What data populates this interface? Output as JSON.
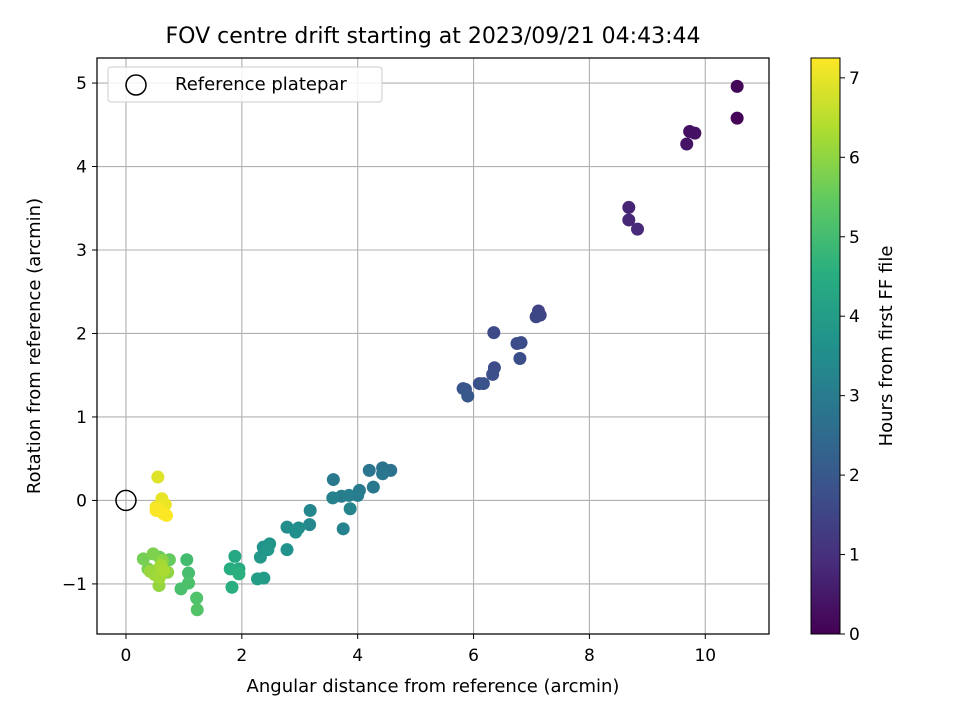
{
  "chart_data": {
    "type": "scatter",
    "title": "FOV centre drift starting at 2023/09/21 04:43:44",
    "xlabel": "Angular distance from reference (arcmin)",
    "ylabel": "Rotation from reference (arcmin)",
    "xlim": [
      -0.5,
      11.1
    ],
    "ylim": [
      -1.6,
      5.3
    ],
    "xticks": [
      0,
      2,
      4,
      6,
      8,
      10
    ],
    "yticks": [
      -1,
      0,
      1,
      2,
      3,
      4,
      5
    ],
    "xtick_labels": [
      "0",
      "2",
      "4",
      "6",
      "8",
      "10"
    ],
    "ytick_labels": [
      "−1",
      "0",
      "1",
      "2",
      "3",
      "4",
      "5"
    ],
    "grid": true,
    "legend": {
      "position": "top-left",
      "entries": [
        "Reference platepar"
      ]
    },
    "reference_point": {
      "x": 0,
      "y": 0,
      "label": "Reference platepar"
    },
    "colorbar": {
      "label": "Hours from first FF file",
      "colormap": "viridis",
      "range": [
        0,
        7.25
      ],
      "ticks": [
        0,
        1,
        2,
        3,
        4,
        5,
        6,
        7
      ],
      "tick_labels": [
        "0",
        "1",
        "2",
        "3",
        "4",
        "5",
        "6",
        "7"
      ]
    },
    "series": [
      {
        "x": [
          10.55,
          10.55,
          9.73,
          9.82,
          9.68,
          8.68,
          8.68,
          8.83,
          7.12,
          7.15,
          7.08,
          6.82,
          6.75,
          6.8,
          6.35,
          6.36,
          6.33,
          6.1,
          6.17,
          5.82,
          5.86,
          5.9,
          4.2,
          4.43,
          4.57,
          4.43,
          4.27,
          4.03,
          4.0,
          3.58,
          3.72,
          3.85,
          3.57,
          3.75,
          3.87,
          3.18,
          3.17,
          2.78,
          2.98,
          2.93,
          2.78,
          2.37,
          2.48,
          2.45,
          2.32,
          2.38,
          2.27,
          1.88,
          1.95,
          1.8,
          1.83,
          1.95,
          1.05,
          1.08,
          0.95,
          1.08,
          1.22,
          1.23,
          0.75,
          0.58,
          0.62,
          0.3,
          0.38,
          0.47,
          0.52,
          0.57,
          0.63,
          0.72,
          0.57,
          0.42,
          0.5,
          0.58,
          0.6,
          0.65,
          0.55,
          0.62,
          0.68
        ],
        "y": [
          4.96,
          4.58,
          4.42,
          4.4,
          4.27,
          3.51,
          3.36,
          3.25,
          2.27,
          2.22,
          2.2,
          1.89,
          1.88,
          1.7,
          2.01,
          1.59,
          1.51,
          1.4,
          1.4,
          1.34,
          1.33,
          1.25,
          0.36,
          0.39,
          0.36,
          0.32,
          0.16,
          0.12,
          0.06,
          0.25,
          0.05,
          0.06,
          0.03,
          -0.34,
          -0.1,
          -0.12,
          -0.29,
          -0.32,
          -0.33,
          -0.38,
          -0.59,
          -0.56,
          -0.52,
          -0.59,
          -0.68,
          -0.93,
          -0.94,
          -0.67,
          -0.82,
          -0.82,
          -1.04,
          -0.88,
          -0.71,
          -0.87,
          -1.06,
          -0.99,
          -1.17,
          -1.31,
          -0.71,
          -0.68,
          -0.78,
          -0.7,
          -0.82,
          -0.64,
          -0.87,
          -0.82,
          -0.72,
          -0.86,
          -1.02,
          -0.85,
          -0.89,
          -0.92,
          -0.78,
          -0.84,
          0.28,
          0.02,
          -0.05
        ],
        "hours": [
          0.1,
          0.05,
          0.3,
          0.35,
          0.4,
          0.75,
          0.8,
          0.85,
          1.45,
          1.5,
          1.55,
          1.65,
          1.7,
          1.72,
          1.62,
          1.68,
          1.75,
          1.8,
          1.85,
          1.9,
          1.95,
          1.98,
          2.8,
          2.75,
          2.7,
          2.85,
          2.9,
          2.95,
          3.0,
          2.9,
          3.05,
          3.1,
          3.15,
          3.2,
          3.25,
          3.3,
          3.35,
          3.5,
          3.55,
          3.6,
          3.65,
          3.7,
          3.75,
          3.8,
          3.85,
          3.95,
          4.0,
          4.3,
          4.4,
          4.5,
          4.55,
          4.6,
          5.0,
          5.05,
          5.1,
          5.15,
          5.2,
          5.25,
          5.5,
          5.55,
          5.6,
          5.7,
          5.75,
          5.8,
          5.85,
          5.9,
          5.95,
          6.0,
          6.05,
          6.1,
          6.15,
          6.2,
          6.25,
          6.3,
          6.9,
          7.0,
          7.05
        ]
      },
      {
        "x": [
          0.52,
          0.58,
          0.63,
          0.52,
          0.7,
          0.65
        ],
        "y": [
          -0.08,
          -0.1,
          -0.14,
          -0.12,
          -0.18,
          -0.16
        ],
        "hours": [
          7.1,
          7.15,
          7.18,
          7.2,
          7.22,
          7.24
        ]
      }
    ]
  }
}
